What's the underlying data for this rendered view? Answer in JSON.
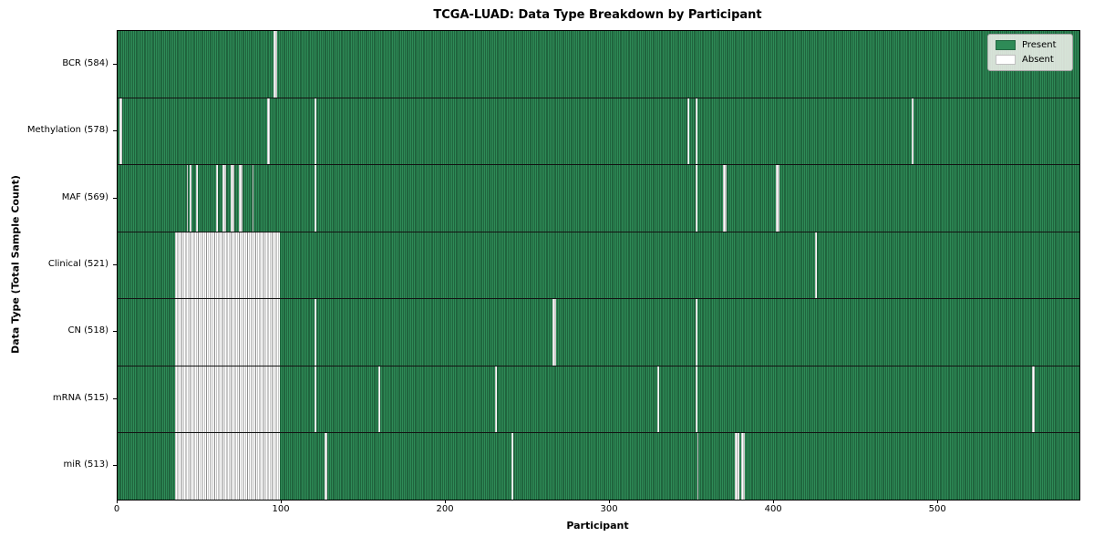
{
  "chart_data": {
    "type": "heatmap",
    "title": "TCGA-LUAD: Data Type Breakdown by Participant",
    "xlabel": "Participant",
    "ylabel": "Data Type (Total Sample Count)",
    "x_max": 586,
    "x_ticks": [
      0,
      100,
      200,
      300,
      400,
      500
    ],
    "grid": false,
    "legend_position": "upper right",
    "legend": [
      {
        "label": "Present",
        "color": "#2e8b57"
      },
      {
        "label": "Absent",
        "color": "#ffffff"
      }
    ],
    "value_encoding": "green cell = data type present for participant, white cell = absent",
    "rows": [
      {
        "label": "BCR (584)",
        "data_type": "BCR",
        "present_count": 584,
        "absent_ranges": [
          [
            95,
            97
          ]
        ]
      },
      {
        "label": "Methylation (578)",
        "data_type": "Methylation",
        "present_count": 578,
        "absent_ranges": [
          [
            1,
            3
          ],
          [
            91,
            93
          ],
          [
            120,
            121
          ],
          [
            347,
            348
          ],
          [
            352,
            353
          ],
          [
            484,
            485
          ]
        ]
      },
      {
        "label": "MAF (569)",
        "data_type": "MAF",
        "present_count": 569,
        "absent_ranges": [
          [
            42,
            43
          ],
          [
            44,
            45
          ],
          [
            48,
            49
          ],
          [
            60,
            61
          ],
          [
            64,
            66
          ],
          [
            69,
            71
          ],
          [
            74,
            76
          ],
          [
            82,
            83
          ],
          [
            120,
            121
          ],
          [
            352,
            353
          ],
          [
            369,
            371
          ],
          [
            401,
            403
          ]
        ]
      },
      {
        "label": "Clinical (521)",
        "data_type": "Clinical",
        "present_count": 521,
        "absent_ranges": [
          [
            35,
            99
          ],
          [
            425,
            426
          ]
        ]
      },
      {
        "label": "CN (518)",
        "data_type": "CN",
        "present_count": 518,
        "absent_ranges": [
          [
            35,
            99
          ],
          [
            120,
            121
          ],
          [
            265,
            267
          ],
          [
            352,
            353
          ]
        ]
      },
      {
        "label": "mRNA (515)",
        "data_type": "mRNA",
        "present_count": 515,
        "absent_ranges": [
          [
            35,
            99
          ],
          [
            120,
            121
          ],
          [
            159,
            160
          ],
          [
            230,
            231
          ],
          [
            329,
            330
          ],
          [
            352,
            353
          ],
          [
            557,
            559
          ]
        ]
      },
      {
        "label": "miR (513)",
        "data_type": "miR",
        "present_count": 513,
        "absent_ranges": [
          [
            35,
            99
          ],
          [
            126,
            128
          ],
          [
            240,
            241
          ],
          [
            353,
            354
          ],
          [
            376,
            379
          ],
          [
            380,
            382
          ]
        ]
      }
    ]
  }
}
